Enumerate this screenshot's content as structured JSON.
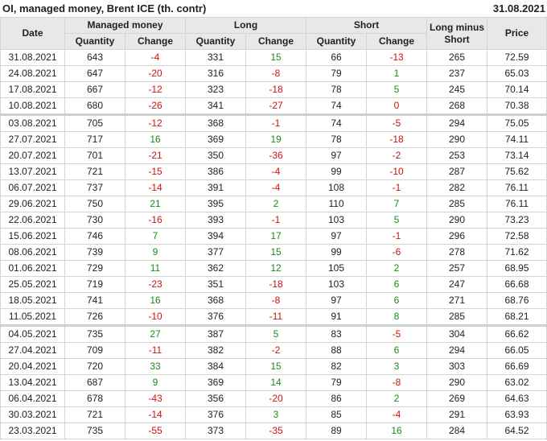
{
  "header": {
    "title": "OI, managed money, Brent ICE (th. contr)",
    "date": "31.08.2021"
  },
  "columns": {
    "date": "Date",
    "managed_money": "Managed money",
    "long": "Long",
    "short": "Short",
    "long_minus_short": "Long minus Short",
    "price": "Price",
    "quantity": "Quantity",
    "change": "Change"
  },
  "colors": {
    "positive": "#1a8a1a",
    "negative": "#d01010",
    "header_bg": "#e8e8e8"
  },
  "separator_before": [
    "03.08.2021",
    "04.05.2021"
  ],
  "rows": [
    [
      "31.08.2021",
      "643",
      "-4",
      "331",
      "15",
      "66",
      "-13",
      "265",
      "72.59"
    ],
    [
      "24.08.2021",
      "647",
      "-20",
      "316",
      "-8",
      "79",
      "1",
      "237",
      "65.03"
    ],
    [
      "17.08.2021",
      "667",
      "-12",
      "323",
      "-18",
      "78",
      "5",
      "245",
      "70.14"
    ],
    [
      "10.08.2021",
      "680",
      "-26",
      "341",
      "-27",
      "74",
      "0",
      "268",
      "70.38"
    ],
    [
      "03.08.2021",
      "705",
      "-12",
      "368",
      "-1",
      "74",
      "-5",
      "294",
      "75.05"
    ],
    [
      "27.07.2021",
      "717",
      "16",
      "369",
      "19",
      "78",
      "-18",
      "290",
      "74.11"
    ],
    [
      "20.07.2021",
      "701",
      "-21",
      "350",
      "-36",
      "97",
      "-2",
      "253",
      "73.14"
    ],
    [
      "13.07.2021",
      "721",
      "-15",
      "386",
      "-4",
      "99",
      "-10",
      "287",
      "75.62"
    ],
    [
      "06.07.2021",
      "737",
      "-14",
      "391",
      "-4",
      "108",
      "-1",
      "282",
      "76.11"
    ],
    [
      "29.06.2021",
      "750",
      "21",
      "395",
      "2",
      "110",
      "7",
      "285",
      "76.11"
    ],
    [
      "22.06.2021",
      "730",
      "-16",
      "393",
      "-1",
      "103",
      "5",
      "290",
      "73.23"
    ],
    [
      "15.06.2021",
      "746",
      "7",
      "394",
      "17",
      "97",
      "-1",
      "296",
      "72.58"
    ],
    [
      "08.06.2021",
      "739",
      "9",
      "377",
      "15",
      "99",
      "-6",
      "278",
      "71.62"
    ],
    [
      "01.06.2021",
      "729",
      "11",
      "362",
      "12",
      "105",
      "2",
      "257",
      "68.95"
    ],
    [
      "25.05.2021",
      "719",
      "-23",
      "351",
      "-18",
      "103",
      "6",
      "247",
      "66.68"
    ],
    [
      "18.05.2021",
      "741",
      "16",
      "368",
      "-8",
      "97",
      "6",
      "271",
      "68.76"
    ],
    [
      "11.05.2021",
      "726",
      "-10",
      "376",
      "-11",
      "91",
      "8",
      "285",
      "68.21"
    ],
    [
      "04.05.2021",
      "735",
      "27",
      "387",
      "5",
      "83",
      "-5",
      "304",
      "66.62"
    ],
    [
      "27.04.2021",
      "709",
      "-11",
      "382",
      "-2",
      "88",
      "6",
      "294",
      "66.05"
    ],
    [
      "20.04.2021",
      "720",
      "33",
      "384",
      "15",
      "82",
      "3",
      "303",
      "66.69"
    ],
    [
      "13.04.2021",
      "687",
      "9",
      "369",
      "14",
      "79",
      "-8",
      "290",
      "63.02"
    ],
    [
      "06.04.2021",
      "678",
      "-43",
      "356",
      "-20",
      "86",
      "2",
      "269",
      "64.63"
    ],
    [
      "30.03.2021",
      "721",
      "-14",
      "376",
      "3",
      "85",
      "-4",
      "291",
      "63.93"
    ],
    [
      "23.03.2021",
      "735",
      "-55",
      "373",
      "-35",
      "89",
      "16",
      "284",
      "64.52"
    ]
  ]
}
